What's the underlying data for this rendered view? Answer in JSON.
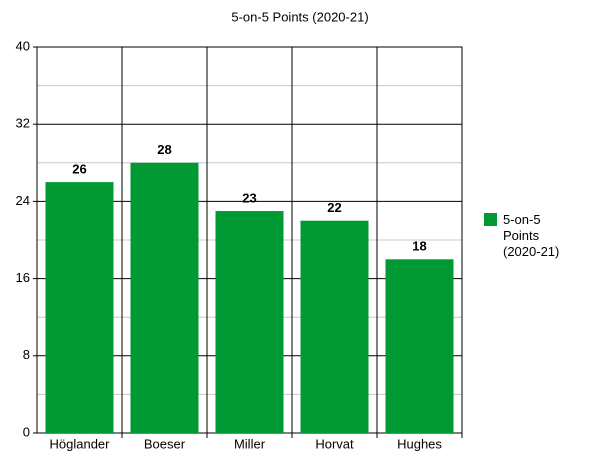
{
  "chart_data": {
    "type": "bar",
    "title": "5-on-5 Points (2020-21)",
    "categories": [
      "Höglander",
      "Boeser",
      "Miller",
      "Horvat",
      "Hughes"
    ],
    "series": [
      {
        "name": "5-on-5 Points (2020-21)",
        "color": "#009933",
        "values": [
          26,
          28,
          23,
          22,
          18
        ]
      }
    ],
    "ylim": [
      0,
      40
    ],
    "yticks": [
      0,
      8,
      16,
      24,
      32,
      40
    ],
    "minor_yticks": [
      4,
      12,
      20,
      28,
      36
    ],
    "grid": true,
    "legend": "right"
  }
}
